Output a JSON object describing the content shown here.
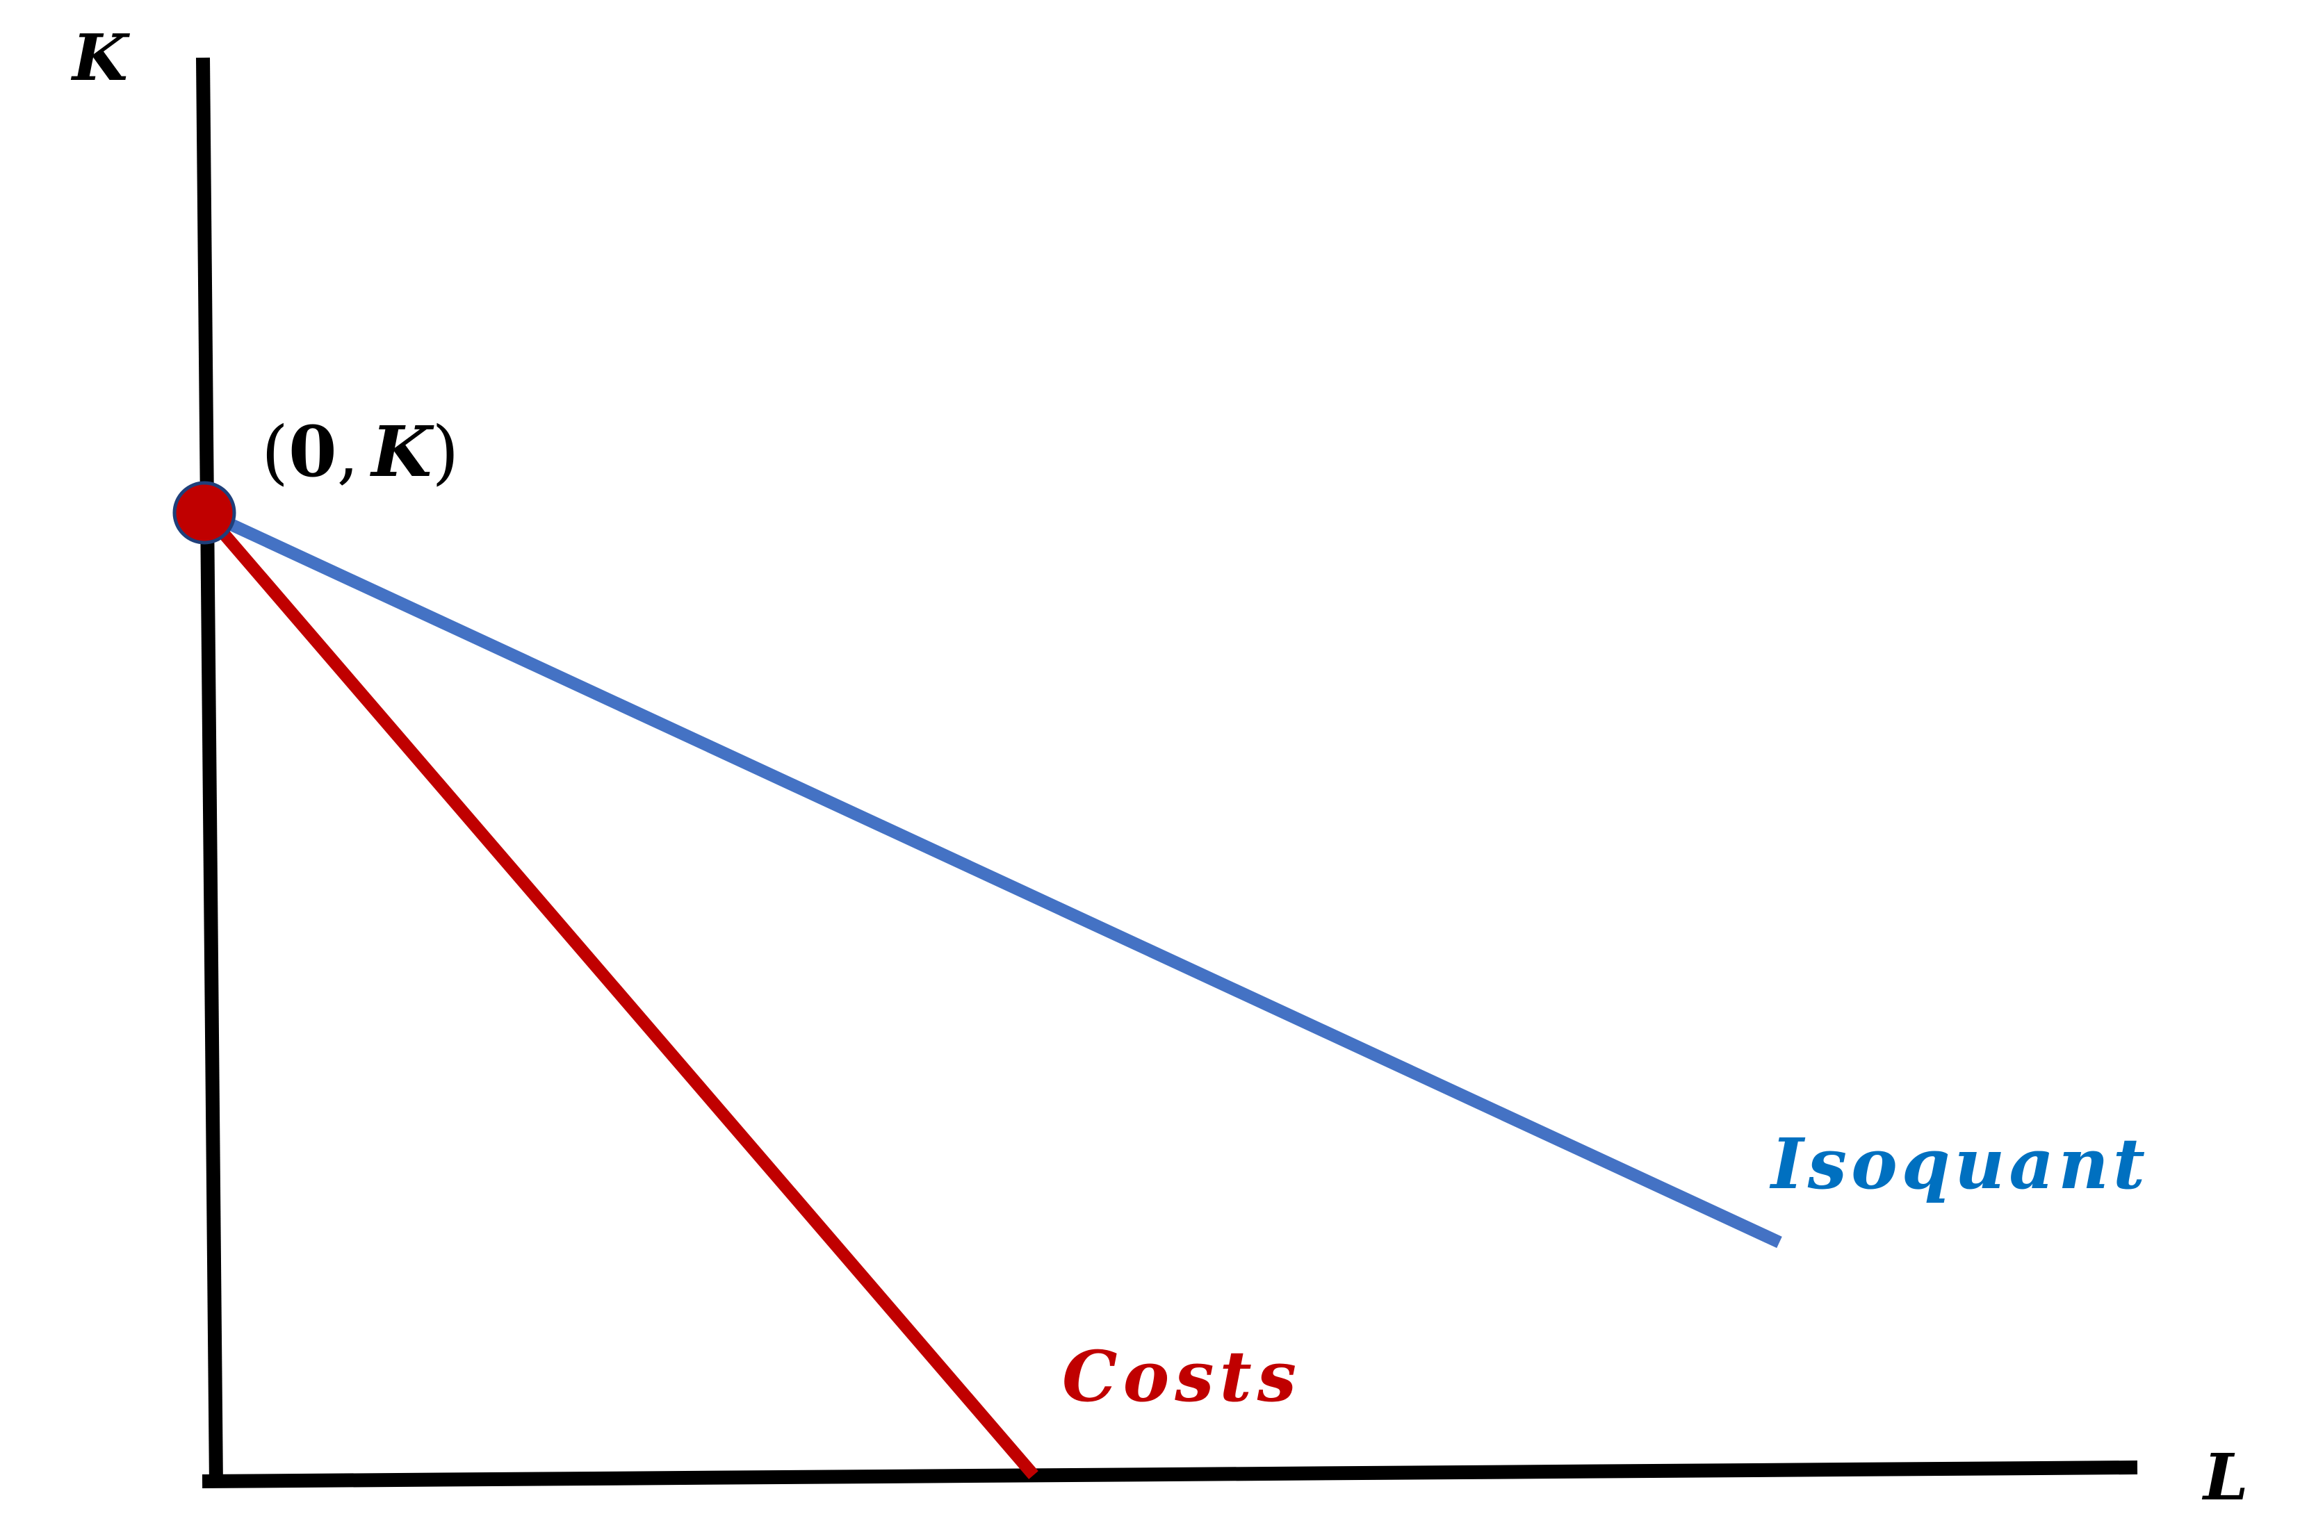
{
  "axes": {
    "y_label": "K",
    "x_label": "L"
  },
  "point": {
    "open_paren": "(",
    "zero": "0",
    "comma": ",",
    "k": "K",
    "close_paren": ")"
  },
  "isoquant": {
    "label": "Isoquant",
    "color": "#4472c4"
  },
  "costs": {
    "label": "Costs",
    "color": "#c00000"
  },
  "point_color": "#c00000",
  "axis_color": "#000000",
  "label_color_isoquant": "#0070c0"
}
